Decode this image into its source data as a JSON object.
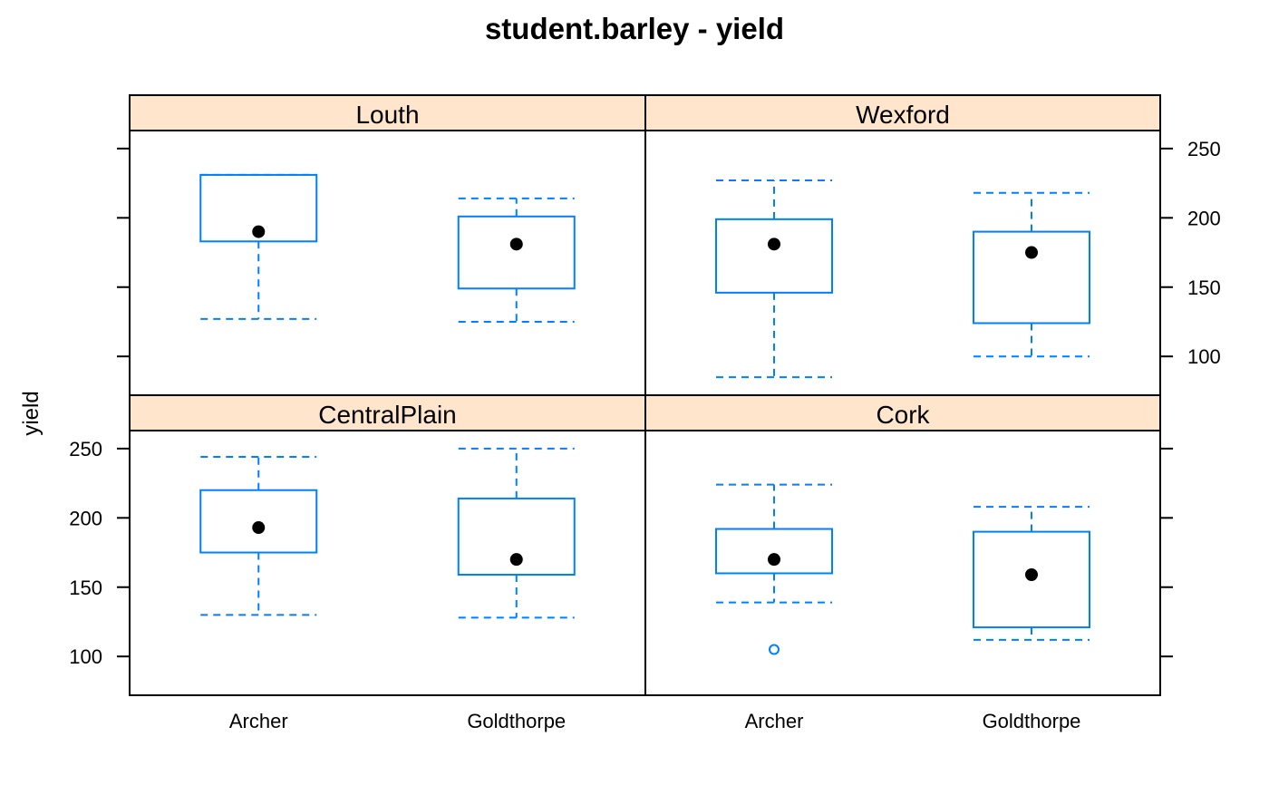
{
  "chart_data": {
    "type": "box",
    "title": "student.barley - yield",
    "ylabel": "yield",
    "categories": [
      "Archer",
      "Goldthorpe"
    ],
    "y_ticks": [
      100,
      150,
      200,
      250
    ],
    "ylim": [
      72,
      263
    ],
    "colors": {
      "box": "#0080ff",
      "strip": "#ffe5cc",
      "median": "#000000"
    },
    "panels": [
      {
        "name": "Louth",
        "row": "top",
        "col": "left",
        "boxes": [
          {
            "category": "Archer",
            "whisker_low": 127,
            "q1": 183,
            "median": 190,
            "q3": 231,
            "whisker_high": 231,
            "outliers": []
          },
          {
            "category": "Goldthorpe",
            "whisker_low": 125,
            "q1": 149,
            "median": 181,
            "q3": 201,
            "whisker_high": 214,
            "outliers": []
          }
        ]
      },
      {
        "name": "Wexford",
        "row": "top",
        "col": "right",
        "boxes": [
          {
            "category": "Archer",
            "whisker_low": 85,
            "q1": 146,
            "median": 181,
            "q3": 199,
            "whisker_high": 227,
            "outliers": []
          },
          {
            "category": "Goldthorpe",
            "whisker_low": 100,
            "q1": 124,
            "median": 175,
            "q3": 190,
            "whisker_high": 218,
            "outliers": []
          }
        ]
      },
      {
        "name": "CentralPlain",
        "row": "bottom",
        "col": "left",
        "boxes": [
          {
            "category": "Archer",
            "whisker_low": 130,
            "q1": 175,
            "median": 193,
            "q3": 220,
            "whisker_high": 244,
            "outliers": []
          },
          {
            "category": "Goldthorpe",
            "whisker_low": 128,
            "q1": 159,
            "median": 170,
            "q3": 214,
            "whisker_high": 250,
            "outliers": []
          }
        ]
      },
      {
        "name": "Cork",
        "row": "bottom",
        "col": "right",
        "boxes": [
          {
            "category": "Archer",
            "whisker_low": 139,
            "q1": 160,
            "median": 170,
            "q3": 192,
            "whisker_high": 224,
            "outliers": [
              105
            ]
          },
          {
            "category": "Goldthorpe",
            "whisker_low": 112,
            "q1": 121,
            "median": 159,
            "q3": 190,
            "whisker_high": 208,
            "outliers": []
          }
        ]
      }
    ]
  }
}
